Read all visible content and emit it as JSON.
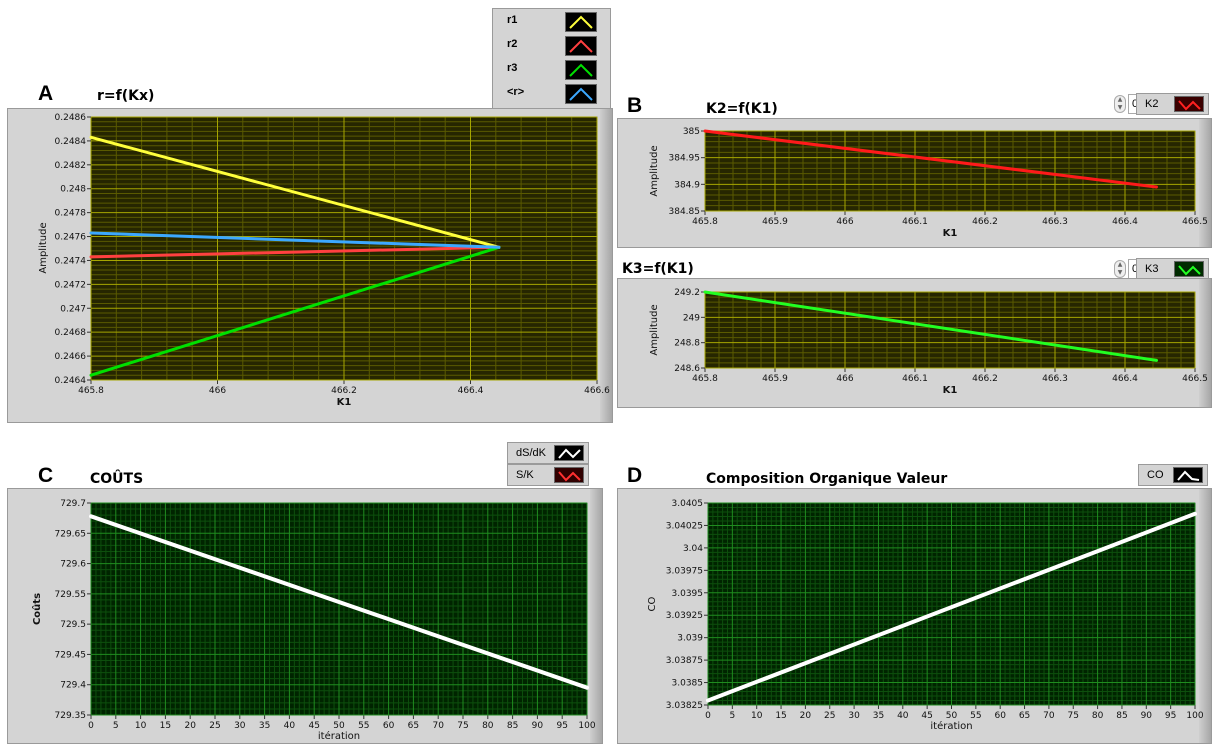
{
  "panels": {
    "A": {
      "letter": "A",
      "title": "r=f(Kx)"
    },
    "B": {
      "letter": "B",
      "title": "K2=f(K1)",
      "spin_value": "0",
      "legend": "K2"
    },
    "B2": {
      "title": "K3=f(K1)",
      "spin_value": "0",
      "legend": "K3"
    },
    "C": {
      "letter": "C",
      "title": "COÛTS"
    },
    "D": {
      "letter": "D",
      "title": "Composition Organique Valeur",
      "legend": "CO"
    }
  },
  "legendA": [
    {
      "name": "r1",
      "color": "#ffff3c"
    },
    {
      "name": "r2",
      "color": "#ff4040"
    },
    {
      "name": "r3",
      "color": "#00e000"
    },
    {
      "name": "<r>",
      "color": "#3ca8ff"
    }
  ],
  "legendC": [
    {
      "name": "dS/dK",
      "color": "#ffffff"
    },
    {
      "name": "S/K",
      "color": "#ff3030"
    }
  ],
  "colors": {
    "yellow_grid_bg": "#262600",
    "green_grid_bg": "#002400"
  },
  "chart_data": [
    {
      "id": "A",
      "type": "line",
      "title": "r=f(Kx)",
      "xlabel": "K1",
      "ylabel": "Amplitude",
      "xlim": [
        465.8,
        466.6
      ],
      "ylim": [
        0.2464,
        0.2486
      ],
      "xticks": [
        465.8,
        466,
        466.2,
        466.4,
        466.6
      ],
      "xtick_labels": [
        "465.8",
        "466",
        "466.2",
        "466.4",
        "466.6"
      ],
      "yticks": [
        0.2464,
        0.2466,
        0.2468,
        0.247,
        0.2472,
        0.2474,
        0.2476,
        0.2478,
        0.248,
        0.2482,
        0.2484,
        0.2486
      ],
      "ytick_labels": [
        "0.2464",
        "0.2466",
        "0.2468",
        "0.247",
        "0.2472",
        "0.2474",
        "0.2476",
        "0.2478",
        "0.248",
        "0.2482",
        "0.2484",
        "0.2486"
      ],
      "grid": "yellow",
      "series": [
        {
          "name": "r1",
          "color": "#ffff3c",
          "x": [
            465.8,
            466.445
          ],
          "y": [
            0.24843,
            0.24751
          ]
        },
        {
          "name": "r2",
          "color": "#ff4040",
          "x": [
            465.8,
            466.445
          ],
          "y": [
            0.24743,
            0.24751
          ]
        },
        {
          "name": "r3",
          "color": "#00e000",
          "x": [
            465.8,
            466.445
          ],
          "y": [
            0.24644,
            0.24751
          ]
        },
        {
          "name": "<r>",
          "color": "#3ca8ff",
          "x": [
            465.8,
            466.445
          ],
          "y": [
            0.24763,
            0.24751
          ]
        }
      ]
    },
    {
      "id": "B",
      "type": "line",
      "title": "K2=f(K1)",
      "xlabel": "K1",
      "ylabel": "Amplitude",
      "xlim": [
        465.8,
        466.5
      ],
      "ylim": [
        384.85,
        385
      ],
      "xticks": [
        465.8,
        465.9,
        466,
        466.1,
        466.2,
        466.3,
        466.4,
        466.5
      ],
      "xtick_labels": [
        "465.8",
        "465.9",
        "466",
        "466.1",
        "466.2",
        "466.3",
        "466.4",
        "466.5"
      ],
      "yticks": [
        384.85,
        384.9,
        384.95,
        385
      ],
      "ytick_labels": [
        "384.85",
        "384.9",
        "384.95",
        "385"
      ],
      "grid": "yellow",
      "series": [
        {
          "name": "K2",
          "color": "#ff1a1a",
          "x": [
            465.8,
            466.445
          ],
          "y": [
            385.0,
            384.895
          ]
        }
      ]
    },
    {
      "id": "B2",
      "type": "line",
      "title": "K3=f(K1)",
      "xlabel": "K1",
      "ylabel": "Amplitude",
      "xlim": [
        465.8,
        466.5
      ],
      "ylim": [
        248.6,
        249.2
      ],
      "xticks": [
        465.8,
        465.9,
        466,
        466.1,
        466.2,
        466.3,
        466.4,
        466.5
      ],
      "xtick_labels": [
        "465.8",
        "465.9",
        "466",
        "466.1",
        "466.2",
        "466.3",
        "466.4",
        "466.5"
      ],
      "yticks": [
        248.6,
        248.8,
        249,
        249.2
      ],
      "ytick_labels": [
        "248.6",
        "248.8",
        "249",
        "249.2"
      ],
      "grid": "yellow",
      "series": [
        {
          "name": "K3",
          "color": "#22ff22",
          "x": [
            465.8,
            466.445
          ],
          "y": [
            249.2,
            248.66
          ]
        }
      ]
    },
    {
      "id": "C",
      "type": "line",
      "title": "COÛTS",
      "xlabel": "itération",
      "ylabel": "Coûts",
      "xlim": [
        0,
        100
      ],
      "ylim": [
        729.35,
        729.7
      ],
      "xticks": [
        0,
        5,
        10,
        15,
        20,
        25,
        30,
        35,
        40,
        45,
        50,
        55,
        60,
        65,
        70,
        75,
        80,
        85,
        90,
        95,
        100
      ],
      "xtick_labels": [
        "0",
        "5",
        "10",
        "15",
        "20",
        "25",
        "30",
        "35",
        "40",
        "45",
        "50",
        "55",
        "60",
        "65",
        "70",
        "75",
        "80",
        "85",
        "90",
        "95",
        "100"
      ],
      "yticks": [
        729.35,
        729.4,
        729.45,
        729.5,
        729.55,
        729.6,
        729.65,
        729.7
      ],
      "ytick_labels": [
        "729.35",
        "729.4",
        "729.45",
        "729.5",
        "729.55",
        "729.6",
        "729.65",
        "729.7"
      ],
      "grid": "green",
      "series": [
        {
          "name": "dS/dK",
          "color": "#ffffff",
          "x": [
            0,
            100
          ],
          "y": [
            729.678,
            729.395
          ]
        }
      ]
    },
    {
      "id": "D",
      "type": "line",
      "title": "Composition Organique Valeur",
      "xlabel": "itération",
      "ylabel": "CO",
      "xlim": [
        0,
        100
      ],
      "ylim": [
        3.03825,
        3.0405
      ],
      "xticks": [
        0,
        5,
        10,
        15,
        20,
        25,
        30,
        35,
        40,
        45,
        50,
        55,
        60,
        65,
        70,
        75,
        80,
        85,
        90,
        95,
        100
      ],
      "xtick_labels": [
        "0",
        "5",
        "10",
        "15",
        "20",
        "25",
        "30",
        "35",
        "40",
        "45",
        "50",
        "55",
        "60",
        "65",
        "70",
        "75",
        "80",
        "85",
        "90",
        "95",
        "100"
      ],
      "yticks": [
        3.03825,
        3.0385,
        3.03875,
        3.039,
        3.03925,
        3.0395,
        3.03975,
        3.04,
        3.04025,
        3.0405
      ],
      "ytick_labels": [
        "3.03825",
        "3.0385",
        "3.03875",
        "3.039",
        "3.03925",
        "3.0395",
        "3.03975",
        "3.04",
        "3.04025",
        "3.0405"
      ],
      "grid": "green",
      "series": [
        {
          "name": "CO",
          "color": "#ffffff",
          "x": [
            0,
            100
          ],
          "y": [
            3.0383,
            3.04038
          ]
        }
      ]
    }
  ]
}
